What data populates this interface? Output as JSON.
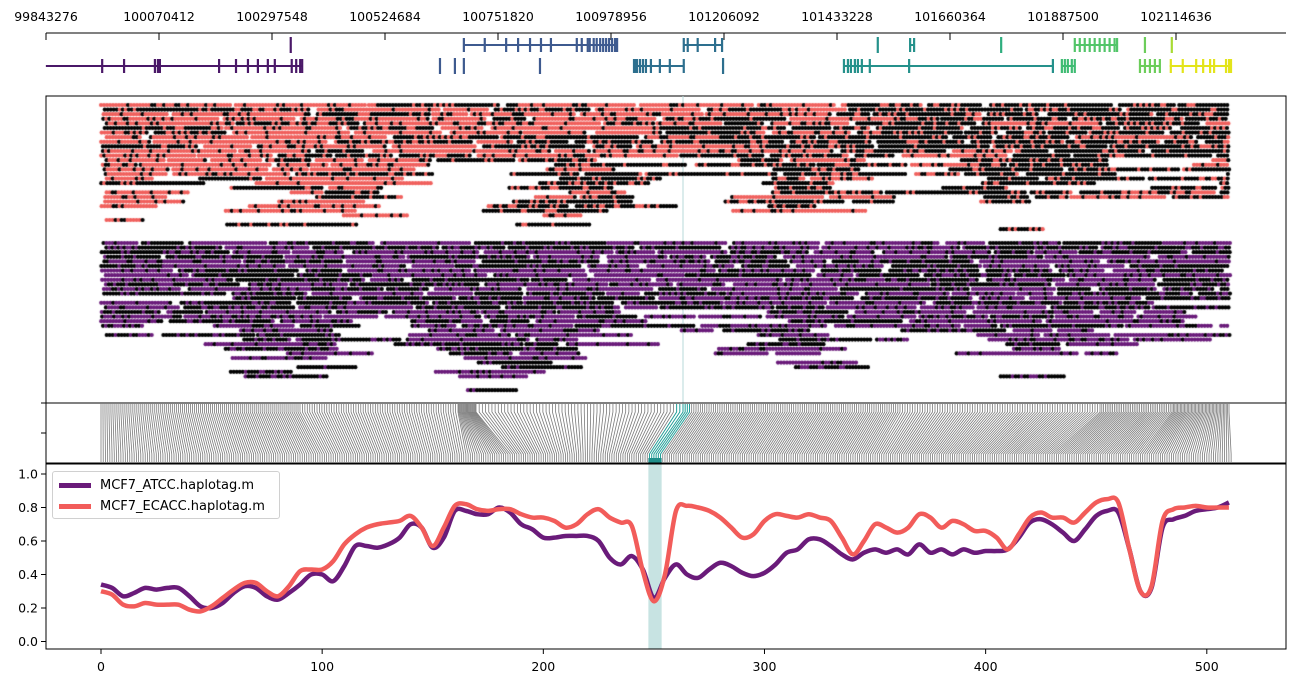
{
  "chart_data": [
    {
      "type": "gene-track",
      "x_ticks": [
        "99843276",
        "100070412",
        "100297548",
        "100524684",
        "100751820",
        "100978956",
        "101206092",
        "101433228",
        "101660364",
        "101887500",
        "102114636"
      ],
      "x_range": [
        99843276,
        102336000
      ],
      "genes": [
        {
          "row": 2,
          "color": "#4a1868",
          "start": 99843000,
          "end": 100358000,
          "exons": [
            99956000,
            100000000,
            100062000,
            100068000,
            100072000,
            100191000,
            100225000,
            100249000,
            100269000,
            100289000,
            100303000,
            100337000,
            100346000,
            100354000,
            100358000
          ]
        },
        {
          "row": 1,
          "color": "#4a1868",
          "start": 100335000,
          "end": 100335000,
          "exons": [
            100335000
          ]
        },
        {
          "row": 1,
          "color": "#3e5a8f",
          "start": 100683000,
          "end": 100991000,
          "exons": [
            100683000,
            100725000,
            100768000,
            100792000,
            100816000,
            100838000,
            100858000,
            100910000,
            100920000,
            100932000,
            100936000,
            100944000,
            100950000,
            100957000,
            100963000,
            100969000,
            100975000,
            100981000,
            100987000,
            100991000
          ]
        },
        {
          "row": 2,
          "color": "#3e5a8f",
          "start": 100635000,
          "end": 100635000,
          "exons": [
            100635000
          ]
        },
        {
          "row": 2,
          "color": "#3e5a8f",
          "start": 100665000,
          "end": 100665000,
          "exons": [
            100665000
          ]
        },
        {
          "row": 2,
          "color": "#3e5a8f",
          "start": 100683000,
          "end": 100683000,
          "exons": [
            100683000
          ]
        },
        {
          "row": 2,
          "color": "#3e5a8f",
          "start": 100836000,
          "end": 100836000,
          "exons": [
            100836000
          ]
        },
        {
          "row": 2,
          "color": "#2d6f8e",
          "start": 101025000,
          "end": 101125000,
          "exons": [
            101025000,
            101028000,
            101031000,
            101037000,
            101043000,
            101049000,
            101059000,
            101077000,
            101097000,
            101125000
          ]
        },
        {
          "row": 1,
          "color": "#2d6f8e",
          "start": 101125000,
          "end": 101202000,
          "exons": [
            101125000,
            101133000,
            101153000,
            101188000,
            101202000
          ]
        },
        {
          "row": 2,
          "color": "#2d6f8e",
          "start": 101204000,
          "end": 101204000,
          "exons": [
            101204000
          ]
        },
        {
          "row": 2,
          "color": "#25918b",
          "start": 101447000,
          "end": 101867000,
          "exons": [
            101447000,
            101455000,
            101461000,
            101469000,
            101475000,
            101483000,
            101499000,
            101578000,
            101867000
          ]
        },
        {
          "row": 1,
          "color": "#25918b",
          "start": 101515000,
          "end": 101515000,
          "exons": [
            101515000
          ]
        },
        {
          "row": 1,
          "color": "#25918b",
          "start": 101580000,
          "end": 101588000,
          "exons": [
            101580000,
            101588000
          ]
        },
        {
          "row": 1,
          "color": "#2fae7e",
          "start": 101763000,
          "end": 101763000,
          "exons": [
            101763000
          ]
        },
        {
          "row": 2,
          "color": "#3fbc73",
          "start": 101885000,
          "end": 101911000,
          "exons": [
            101885000,
            101891000,
            101897000,
            101905000,
            101911000
          ]
        },
        {
          "row": 1,
          "color": "#52c569",
          "start": 101911000,
          "end": 101996000,
          "exons": [
            101911000,
            101921000,
            101931000,
            101941000,
            101951000,
            101961000,
            101971000,
            101981000,
            101991000,
            101996000
          ]
        },
        {
          "row": 1,
          "color": "#6ccd5a",
          "start": 102052000,
          "end": 102052000,
          "exons": [
            102052000
          ]
        },
        {
          "row": 1,
          "color": "#a8db34",
          "start": 102106000,
          "end": 102106000,
          "exons": [
            102106000
          ]
        },
        {
          "row": 2,
          "color": "#6ccd5a",
          "start": 102042000,
          "end": 102082000,
          "exons": [
            102042000,
            102052000,
            102062000,
            102072000,
            102082000
          ]
        },
        {
          "row": 2,
          "color": "#e3e41b",
          "start": 102102000,
          "end": 102225000,
          "exons": [
            102104000,
            102128000,
            102155000,
            102169000,
            102183000,
            102191000,
            102215000,
            102221000,
            102225000
          ]
        }
      ]
    },
    {
      "type": "read-pileup",
      "haplotypes": [
        {
          "colors": [
            "#f0605d",
            "#000000"
          ]
        },
        {
          "colors": [
            "#6a1b7a",
            "#000000"
          ]
        }
      ],
      "highlight_variant_index": 250
    },
    {
      "type": "line",
      "x_ticks": [
        "0",
        "100",
        "200",
        "300",
        "400",
        "500"
      ],
      "y_ticks": [
        "0.0",
        "0.2",
        "0.4",
        "0.6",
        "0.8",
        "1.0"
      ],
      "xlim": [
        -25,
        537
      ],
      "ylim": [
        -0.04,
        1.05
      ],
      "legend": "top-left",
      "highlight_span": [
        247.5,
        253.5
      ],
      "highlight_color": "#c7e3e2",
      "x": [
        0,
        5,
        10,
        15,
        20,
        25,
        30,
        35,
        40,
        45,
        50,
        55,
        60,
        65,
        70,
        75,
        80,
        85,
        90,
        95,
        100,
        105,
        110,
        115,
        120,
        125,
        130,
        135,
        140,
        145,
        150,
        155,
        160,
        165,
        170,
        175,
        180,
        185,
        190,
        195,
        200,
        205,
        210,
        215,
        220,
        225,
        230,
        235,
        240,
        245,
        250,
        255,
        260,
        265,
        270,
        275,
        280,
        285,
        290,
        295,
        300,
        305,
        310,
        315,
        320,
        325,
        330,
        335,
        340,
        345,
        350,
        355,
        360,
        365,
        370,
        375,
        380,
        385,
        390,
        395,
        400,
        405,
        410,
        415,
        420,
        425,
        430,
        435,
        440,
        445,
        450,
        455,
        460,
        465,
        470,
        475,
        480,
        485,
        490,
        495,
        500,
        505,
        510
      ],
      "series": [
        {
          "name": "MCF7_ATCC.haplotag.m",
          "color": "#6a1b7a",
          "values": [
            0.34,
            0.32,
            0.27,
            0.29,
            0.32,
            0.31,
            0.32,
            0.32,
            0.27,
            0.21,
            0.2,
            0.23,
            0.29,
            0.33,
            0.32,
            0.27,
            0.25,
            0.29,
            0.34,
            0.4,
            0.4,
            0.36,
            0.45,
            0.57,
            0.57,
            0.56,
            0.58,
            0.62,
            0.7,
            0.68,
            0.56,
            0.62,
            0.78,
            0.78,
            0.76,
            0.76,
            0.8,
            0.77,
            0.7,
            0.67,
            0.62,
            0.62,
            0.63,
            0.63,
            0.63,
            0.6,
            0.5,
            0.46,
            0.51,
            0.43,
            0.26,
            0.38,
            0.46,
            0.4,
            0.38,
            0.43,
            0.47,
            0.45,
            0.41,
            0.39,
            0.41,
            0.46,
            0.53,
            0.55,
            0.61,
            0.61,
            0.57,
            0.52,
            0.49,
            0.53,
            0.55,
            0.53,
            0.55,
            0.52,
            0.58,
            0.53,
            0.55,
            0.52,
            0.55,
            0.53,
            0.54,
            0.54,
            0.55,
            0.62,
            0.71,
            0.73,
            0.7,
            0.65,
            0.6,
            0.67,
            0.75,
            0.78,
            0.77,
            0.55,
            0.3,
            0.32,
            0.68,
            0.73,
            0.75,
            0.78,
            0.79,
            0.8,
            0.83
          ]
        },
        {
          "name": "MCF7_ECACC.haplotag.m",
          "color": "#f25c5a",
          "values": [
            0.3,
            0.28,
            0.22,
            0.21,
            0.23,
            0.22,
            0.22,
            0.22,
            0.19,
            0.18,
            0.21,
            0.26,
            0.31,
            0.35,
            0.35,
            0.3,
            0.27,
            0.33,
            0.42,
            0.43,
            0.43,
            0.48,
            0.58,
            0.64,
            0.68,
            0.7,
            0.71,
            0.72,
            0.75,
            0.68,
            0.57,
            0.68,
            0.81,
            0.82,
            0.79,
            0.78,
            0.79,
            0.79,
            0.76,
            0.74,
            0.74,
            0.72,
            0.68,
            0.7,
            0.76,
            0.79,
            0.74,
            0.71,
            0.69,
            0.42,
            0.24,
            0.4,
            0.78,
            0.81,
            0.8,
            0.78,
            0.74,
            0.68,
            0.62,
            0.64,
            0.72,
            0.76,
            0.75,
            0.74,
            0.76,
            0.74,
            0.72,
            0.62,
            0.52,
            0.6,
            0.7,
            0.68,
            0.65,
            0.68,
            0.76,
            0.74,
            0.68,
            0.72,
            0.7,
            0.66,
            0.66,
            0.62,
            0.55,
            0.64,
            0.74,
            0.77,
            0.74,
            0.74,
            0.71,
            0.77,
            0.83,
            0.85,
            0.83,
            0.55,
            0.3,
            0.33,
            0.72,
            0.79,
            0.8,
            0.81,
            0.8,
            0.8,
            0.8
          ]
        }
      ]
    }
  ]
}
